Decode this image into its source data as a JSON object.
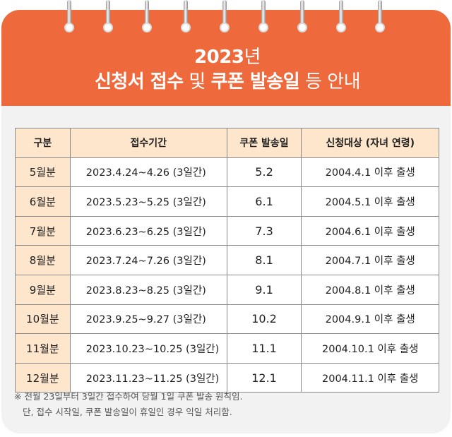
{
  "title": {
    "year": "2023",
    "year_suffix": "년",
    "line2_bold1": "신청서 접수",
    "line2_plain1": "및",
    "line2_bold2": "쿠폰 발송일",
    "line2_plain2": "등 안내"
  },
  "table": {
    "headers": [
      "구분",
      "접수기간",
      "쿠폰 발송일",
      "신청대상 (자녀 연령)"
    ],
    "rows": [
      {
        "label": "5월분",
        "period": "2023.4.24~4.26 (3일간)",
        "send": "5.2",
        "target": "2004.4.1 이후 출생"
      },
      {
        "label": "6월분",
        "period": "2023.5.23~5.25 (3일간)",
        "send": "6.1",
        "target": "2004.5.1 이후 출생"
      },
      {
        "label": "7월분",
        "period": "2023.6.23~6.25 (3일간)",
        "send": "7.3",
        "target": "2004.6.1 이후 출생"
      },
      {
        "label": "8월분",
        "period": "2023.7.24~7.26 (3일간)",
        "send": "8.1",
        "target": "2004.7.1 이후 출생"
      },
      {
        "label": "9월분",
        "period": "2023.8.23~8.25 (3일간)",
        "send": "9.1",
        "target": "2004.8.1 이후 출생"
      },
      {
        "label": "10월분",
        "period": "2023.9.25~9.27 (3일간)",
        "send": "10.2",
        "target": "2004.9.1 이후 출생"
      },
      {
        "label": "11월분",
        "period": "2023.10.23~10.25 (3일간)",
        "send": "11.1",
        "target": "2004.10.1 이후 출생"
      },
      {
        "label": "12월분",
        "period": "2023.11.23~11.25 (3일간)",
        "send": "12.1",
        "target": "2004.11.1 이후 출생"
      }
    ]
  },
  "notes": {
    "line1": "※ 전월 23일부터 3일간 접수하여 당월 1일 쿠폰 발송 원칙임.",
    "line2": "단, 접수 시작일, 쿠폰 발송일이 휴일인 경우 익일 처리함."
  },
  "colors": {
    "header_bg": "#ee6a3c",
    "table_header_bg": "#fde6cc",
    "card_bg": "#f2f2f2"
  }
}
